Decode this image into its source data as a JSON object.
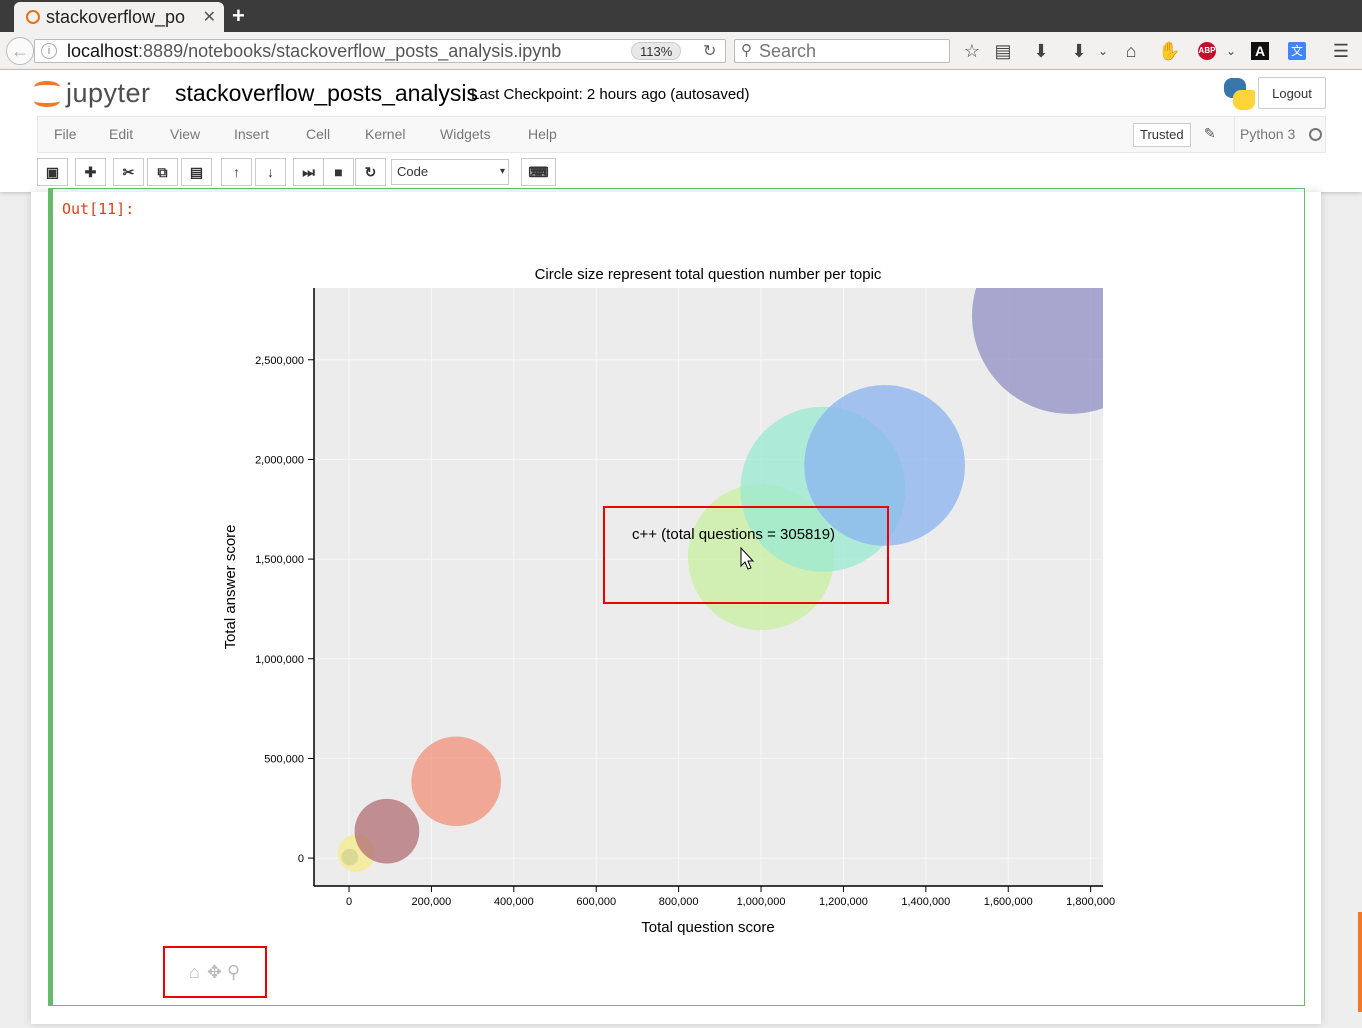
{
  "browser": {
    "tab_title": "stackoverflow_po",
    "url_host": "localhost",
    "url_path": ":8889/notebooks/stackoverflow_posts_analysis.ipynb",
    "zoom": "113%",
    "search_placeholder": "Search"
  },
  "jupyter": {
    "logo_text": "jupyter",
    "notebook_name": "stackoverflow_posts_analysis",
    "checkpoint": "Last Checkpoint: 2 hours ago (autosaved)",
    "logout": "Logout",
    "menu": [
      "File",
      "Edit",
      "View",
      "Insert",
      "Cell",
      "Kernel",
      "Widgets",
      "Help"
    ],
    "trusted": "Trusted",
    "kernel": "Python 3",
    "cell_type": "Code"
  },
  "cell": {
    "out_prompt": "Out[11]:"
  },
  "tooltip": {
    "text": "c++ (total questions = 305819)"
  },
  "chart_data": {
    "type": "scatter",
    "title": "Circle size represent total question number per topic",
    "xlabel": "Total question score",
    "ylabel": "Total answer score",
    "xlim": [
      -85000,
      1830000
    ],
    "ylim": [
      -140000,
      2860000
    ],
    "x_ticks": [
      0,
      200000,
      400000,
      600000,
      800000,
      1000000,
      1200000,
      1400000,
      1600000,
      1800000
    ],
    "x_tick_labels": [
      "0",
      "200,000",
      "400,000",
      "600,000",
      "800,000",
      "1,000,000",
      "1,200,000",
      "1,400,000",
      "1,600,000",
      "1,800,000"
    ],
    "y_ticks": [
      0,
      500000,
      1000000,
      1500000,
      2000000,
      2500000
    ],
    "y_tick_labels": [
      "0",
      "500,000",
      "1,000,000",
      "1,500,000",
      "2,000,000",
      "2,500,000"
    ],
    "grid": true,
    "series": [
      {
        "x": 2000,
        "y": 5000,
        "questions": 4000,
        "color": "#5d8aa8"
      },
      {
        "x": 18000,
        "y": 25000,
        "questions": 20000,
        "color": "#f6ec8a"
      },
      {
        "x": 92000,
        "y": 135000,
        "questions": 60000,
        "color": "#b26e74"
      },
      {
        "x": 260000,
        "y": 385000,
        "questions": 115000,
        "color": "#f39078"
      },
      {
        "x": 1000000,
        "y": 1510000,
        "questions": 305819,
        "color": "#c8f0a0"
      },
      {
        "x": 1150000,
        "y": 1850000,
        "questions": 390000,
        "color": "#98ead2"
      },
      {
        "x": 1300000,
        "y": 1970000,
        "questions": 370000,
        "color": "#8ab3f0"
      },
      {
        "x": 1750000,
        "y": 2720000,
        "questions": 550000,
        "color": "#8f8fc6"
      }
    ]
  }
}
